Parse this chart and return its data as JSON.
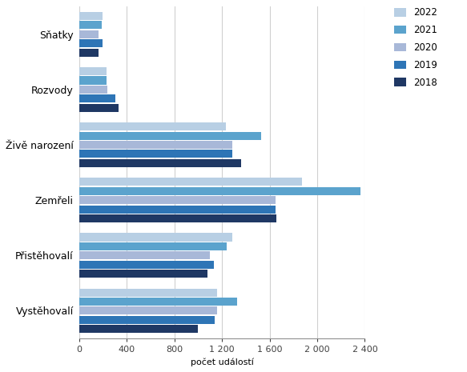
{
  "categories": [
    "Vystěhovalí",
    "Přistěhovalí",
    "Zemřeli",
    "Živě narození",
    "Rozvody",
    "Sňatky"
  ],
  "years": [
    "2018",
    "2019",
    "2020",
    "2021",
    "2022"
  ],
  "values": {
    "Sňatky": [
      160,
      195,
      165,
      190,
      200
    ],
    "Rozvody": [
      330,
      305,
      235,
      230,
      230
    ],
    "Živě narození": [
      1360,
      1290,
      1290,
      1530,
      1230
    ],
    "Zemřeli": [
      1660,
      1650,
      1650,
      2360,
      1870
    ],
    "Přistěhovalí": [
      1080,
      1130,
      1100,
      1240,
      1290
    ],
    "Vystěhovalí": [
      1000,
      1140,
      1160,
      1330,
      1160
    ]
  },
  "colors": {
    "2022": "#b8cfe4",
    "2021": "#5ba3cd",
    "2020": "#a8b8d8",
    "2019": "#2e75b6",
    "2018": "#1f3864"
  },
  "xlabel": "počet událostí",
  "xlim": [
    0,
    2400
  ],
  "xticks": [
    0,
    400,
    800,
    1200,
    1600,
    2000,
    2400
  ],
  "xtick_labels": [
    "0",
    "400",
    "800",
    "1 200",
    "1 600",
    "2 000",
    "2 400"
  ],
  "grid_color": "#d0d0d0",
  "background_color": "#ffffff"
}
